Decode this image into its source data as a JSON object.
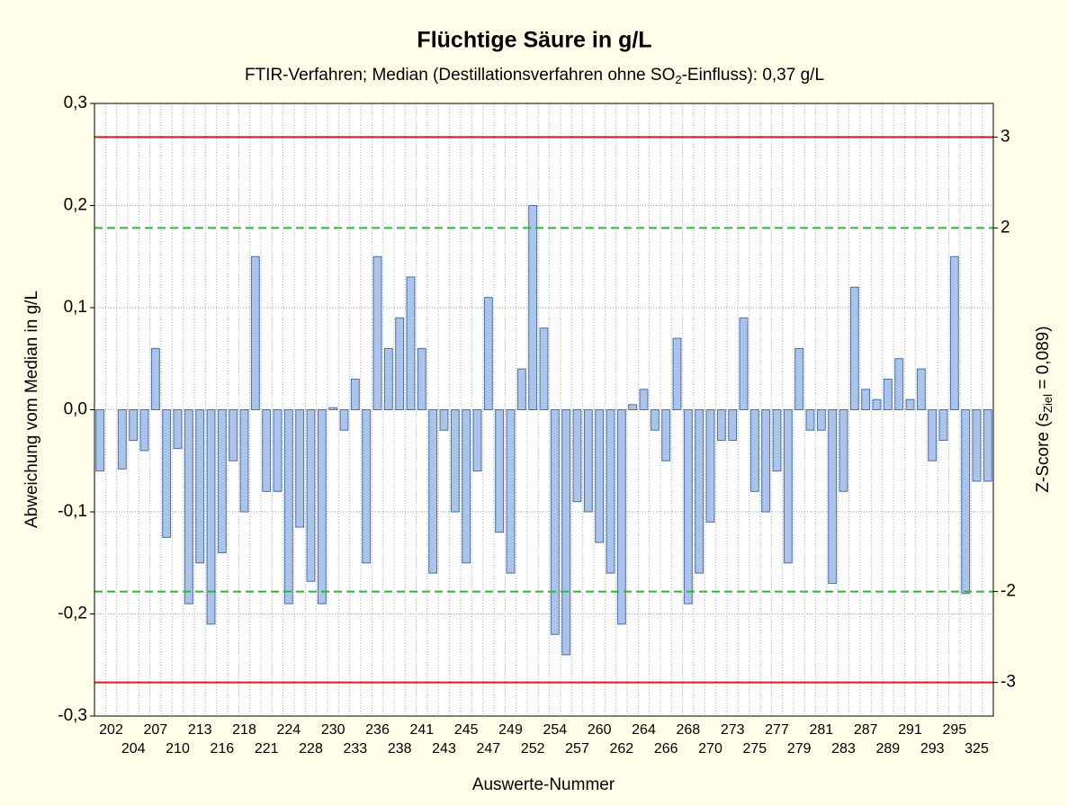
{
  "chart_data": {
    "type": "bar",
    "title": "Flüchtige Säure in g/L",
    "subtitle_parts": [
      "FTIR-Verfahren; Median (Destillationsverfahren ohne SO",
      "2",
      "-Einfluss): 0,37 g/L"
    ],
    "xlabel": "Auswerte-Nummer",
    "ylabel": "Abweichung vom Median in g/L",
    "y2label_parts": [
      "Z-Score (s",
      "Ziel",
      " = 0,089)"
    ],
    "categories": [
      null,
      "202",
      null,
      "204",
      null,
      "207",
      null,
      "210",
      null,
      "213",
      null,
      "216",
      null,
      "218",
      null,
      "221",
      null,
      "224",
      null,
      "228",
      null,
      "230",
      null,
      "233",
      null,
      "236",
      null,
      "238",
      null,
      "241",
      null,
      "243",
      null,
      "245",
      null,
      "247",
      null,
      "249",
      null,
      "252",
      null,
      "254",
      null,
      "257",
      null,
      "260",
      null,
      "262",
      null,
      "264",
      null,
      "266",
      null,
      "268",
      null,
      "270",
      null,
      "273",
      null,
      "275",
      null,
      "277",
      null,
      "279",
      null,
      "281",
      null,
      "283",
      null,
      "287",
      null,
      "289",
      null,
      "291",
      null,
      "293",
      null,
      "295",
      null,
      "325",
      null
    ],
    "values": [
      -0.06,
      null,
      -0.058,
      -0.03,
      -0.04,
      0.06,
      -0.125,
      -0.038,
      -0.19,
      -0.15,
      -0.21,
      -0.14,
      -0.05,
      -0.1,
      0.15,
      -0.08,
      -0.08,
      -0.19,
      -0.115,
      -0.168,
      -0.19,
      0.002,
      -0.02,
      0.03,
      -0.15,
      0.15,
      0.06,
      0.09,
      0.13,
      0.06,
      -0.16,
      -0.02,
      -0.1,
      -0.15,
      -0.06,
      0.11,
      -0.12,
      -0.16,
      0.04,
      0.2,
      0.08,
      -0.22,
      -0.24,
      -0.09,
      -0.1,
      -0.13,
      -0.16,
      -0.21,
      0.005,
      0.02,
      -0.02,
      -0.05,
      0.07,
      -0.19,
      -0.16,
      -0.11,
      -0.03,
      -0.03,
      0.09,
      -0.08,
      -0.1,
      -0.06,
      -0.15,
      0.06,
      -0.02,
      -0.02,
      -0.17,
      -0.08,
      0.12,
      0.02,
      0.01,
      0.03,
      0.05,
      0.01,
      0.04,
      -0.05,
      -0.03,
      0.15,
      -0.18,
      -0.07,
      -0.07
    ],
    "color": "#aac4ea",
    "edge_color": "#4a6ea8",
    "ylim": [
      -0.3,
      0.3
    ],
    "yticks": [
      {
        "value": -0.3,
        "label": "-0,3"
      },
      {
        "value": -0.2,
        "label": "-0,2"
      },
      {
        "value": -0.1,
        "label": "-0,1"
      },
      {
        "value": 0,
        "label": "0,0"
      },
      {
        "value": 0.1,
        "label": "0,1"
      },
      {
        "value": 0.2,
        "label": "0,2"
      },
      {
        "value": 0.3,
        "label": "0,3"
      }
    ],
    "y2lim": [
      -3.37,
      3.37
    ],
    "y2ticks": [
      -3,
      -2,
      2,
      3
    ],
    "reference_lines": [
      {
        "value": 3,
        "axis": "y2",
        "color": "#e8161b",
        "style": "solid"
      },
      {
        "value": 2,
        "axis": "y2",
        "color": "#22c022",
        "style": "dashed"
      },
      {
        "value": -2,
        "axis": "y2",
        "color": "#22c022",
        "style": "dashed"
      },
      {
        "value": -3,
        "axis": "y2",
        "color": "#e8161b",
        "style": "solid"
      }
    ],
    "grid": true
  }
}
